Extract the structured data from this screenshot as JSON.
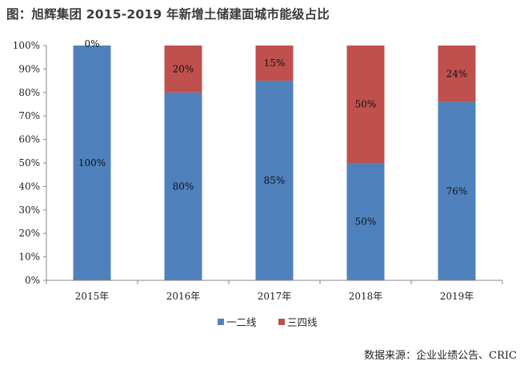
{
  "title": "图：旭辉集团 2015-2019 年新增土储建面城市能级占比",
  "source": "数据来源：企业业绩公告、CRIC",
  "colors": {
    "series1": "#4f81bd",
    "series2": "#c0504d",
    "axis": "#888888"
  },
  "chart_data": {
    "type": "bar",
    "stacked": true,
    "percent": true,
    "categories": [
      "2015年",
      "2016年",
      "2017年",
      "2018年",
      "2019年"
    ],
    "series": [
      {
        "name": "一二线",
        "values": [
          100,
          80,
          85,
          50,
          76
        ],
        "labels": [
          "100%",
          "80%",
          "85%",
          "50%",
          "76%"
        ]
      },
      {
        "name": "三四线",
        "values": [
          0,
          20,
          15,
          50,
          24
        ],
        "labels": [
          "0%",
          "20%",
          "15%",
          "50%",
          "24%"
        ]
      }
    ],
    "yticks": [
      "0%",
      "10%",
      "20%",
      "30%",
      "40%",
      "50%",
      "60%",
      "70%",
      "80%",
      "90%",
      "100%"
    ],
    "ylim": [
      0,
      100
    ],
    "legend": "bottom"
  }
}
